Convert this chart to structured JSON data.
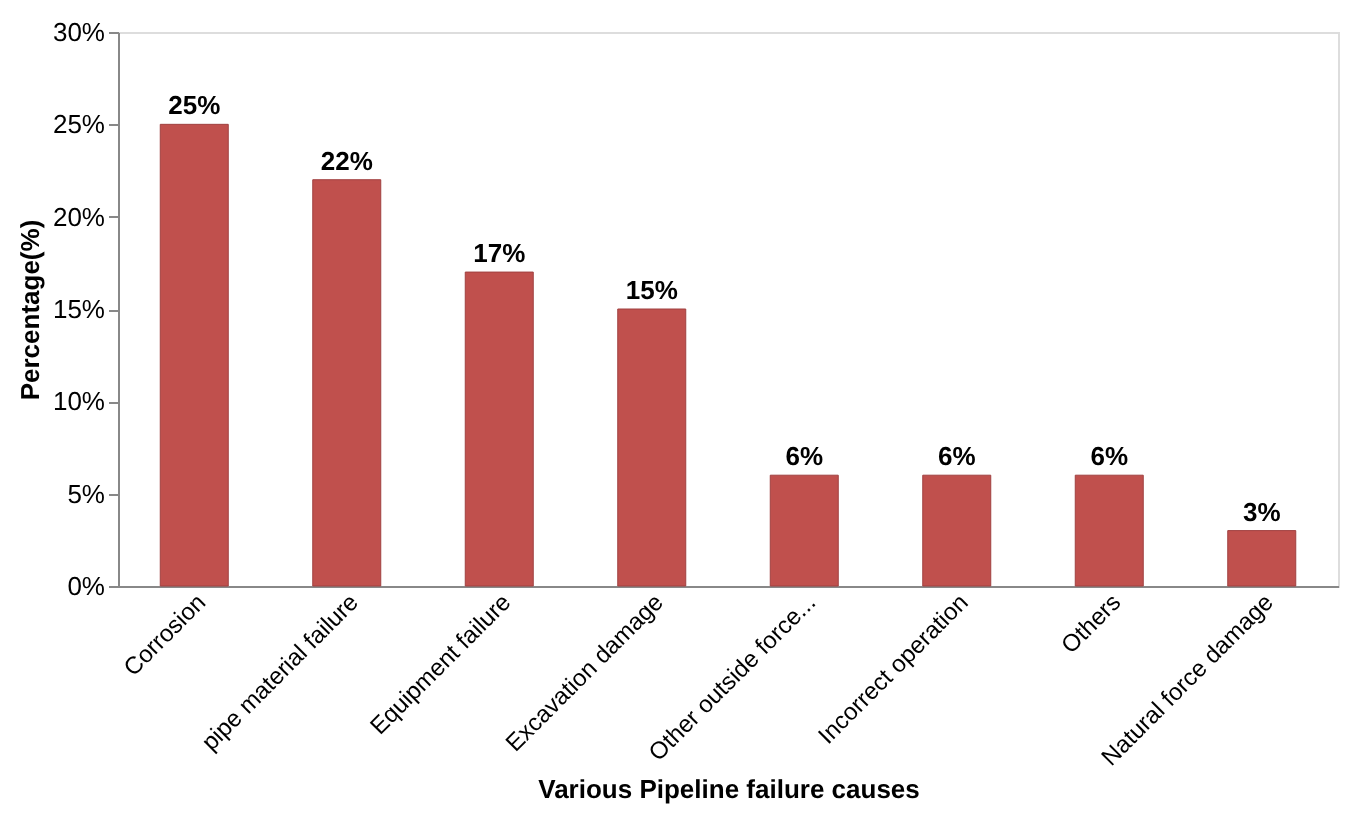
{
  "chart_data": {
    "type": "bar",
    "xlabel": "Various Pipeline failure causes",
    "ylabel": "Percentage(%)",
    "categories": [
      "Corrosion",
      "pipe material failure",
      "Equipment failure",
      "Excavation damage",
      "Other outside force...",
      "Incorrect operation",
      "Others",
      "Natural force damage"
    ],
    "values": [
      25,
      22,
      17,
      15,
      6,
      6,
      6,
      3
    ],
    "value_labels": [
      "25%",
      "22%",
      "17%",
      "15%",
      "6%",
      "6%",
      "6%",
      "3%"
    ],
    "color": "#c0504d",
    "ylim": [
      0,
      30
    ],
    "yticks": [
      {
        "value": 0,
        "label": "0%"
      },
      {
        "value": 5,
        "label": "5%"
      },
      {
        "value": 10,
        "label": "10%"
      },
      {
        "value": 15,
        "label": "15%"
      },
      {
        "value": 20,
        "label": "20%"
      },
      {
        "value": 25,
        "label": "25%"
      },
      {
        "value": 30,
        "label": "30%"
      }
    ],
    "grid": false
  }
}
